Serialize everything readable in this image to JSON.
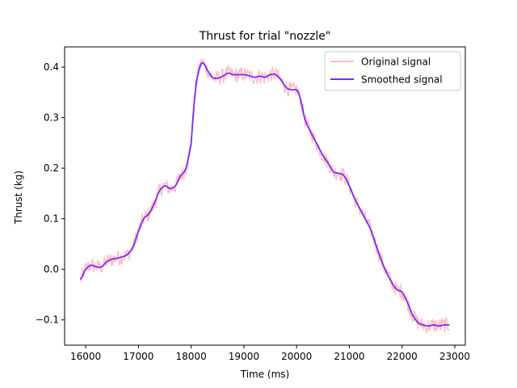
{
  "chart_data": {
    "type": "line",
    "title": "Thrust for trial \"nozzle\"",
    "xlabel": "Time (ms)",
    "ylabel": "Thrust (kg)",
    "xlim": [
      15600,
      23200
    ],
    "ylim": [
      -0.15,
      0.44
    ],
    "xticks": [
      16000,
      17000,
      18000,
      19000,
      20000,
      21000,
      22000,
      23000
    ],
    "yticks": [
      -0.1,
      0.0,
      0.1,
      0.2,
      0.3,
      0.4
    ],
    "xtick_labels": [
      "16000",
      "17000",
      "18000",
      "19000",
      "20000",
      "21000",
      "22000",
      "23000"
    ],
    "ytick_labels": [
      "−0.1",
      "0.0",
      "0.1",
      "0.2",
      "0.3",
      "0.4"
    ],
    "legend": {
      "position": "top-right",
      "entries": [
        "Original signal",
        "Smoothed signal"
      ]
    },
    "grid": false,
    "series": [
      {
        "name": "Original signal",
        "color": "#ffc0c8",
        "noise": 0.015,
        "x": [
          15900,
          16000,
          16100,
          16200,
          16300,
          16400,
          16500,
          16600,
          16700,
          16800,
          16900,
          17000,
          17100,
          17200,
          17300,
          17400,
          17500,
          17600,
          17700,
          17800,
          17900,
          18000,
          18050,
          18100,
          18150,
          18200,
          18250,
          18300,
          18400,
          18500,
          18600,
          18700,
          18800,
          18900,
          19000,
          19100,
          19200,
          19300,
          19400,
          19500,
          19600,
          19700,
          19800,
          19900,
          20000,
          20050,
          20100,
          20150,
          20200,
          20300,
          20400,
          20500,
          20600,
          20700,
          20800,
          20900,
          21000,
          21100,
          21200,
          21300,
          21400,
          21500,
          21600,
          21700,
          21800,
          21900,
          22000,
          22100,
          22200,
          22300,
          22400,
          22500,
          22600,
          22700,
          22800,
          22900
        ],
        "y": [
          -0.02,
          0.0,
          0.008,
          0.005,
          0.005,
          0.015,
          0.02,
          0.022,
          0.025,
          0.03,
          0.045,
          0.075,
          0.1,
          0.11,
          0.13,
          0.155,
          0.165,
          0.16,
          0.165,
          0.185,
          0.2,
          0.25,
          0.32,
          0.37,
          0.395,
          0.408,
          0.405,
          0.395,
          0.38,
          0.378,
          0.382,
          0.388,
          0.385,
          0.385,
          0.385,
          0.383,
          0.38,
          0.382,
          0.38,
          0.385,
          0.385,
          0.375,
          0.36,
          0.355,
          0.355,
          0.345,
          0.325,
          0.3,
          0.285,
          0.265,
          0.245,
          0.225,
          0.21,
          0.193,
          0.19,
          0.185,
          0.165,
          0.14,
          0.12,
          0.1,
          0.08,
          0.05,
          0.02,
          -0.005,
          -0.025,
          -0.04,
          -0.045,
          -0.065,
          -0.09,
          -0.105,
          -0.11,
          -0.112,
          -0.11,
          -0.112,
          -0.11,
          -0.11
        ]
      },
      {
        "name": "Smoothed signal",
        "color": "#7b2cf0",
        "x": [
          15900,
          16000,
          16100,
          16200,
          16300,
          16400,
          16500,
          16600,
          16700,
          16800,
          16900,
          17000,
          17100,
          17200,
          17300,
          17400,
          17500,
          17600,
          17700,
          17800,
          17900,
          18000,
          18050,
          18100,
          18150,
          18200,
          18250,
          18300,
          18400,
          18500,
          18600,
          18700,
          18800,
          18900,
          19000,
          19100,
          19200,
          19300,
          19400,
          19500,
          19600,
          19700,
          19800,
          19900,
          20000,
          20050,
          20100,
          20150,
          20200,
          20300,
          20400,
          20500,
          20600,
          20700,
          20800,
          20900,
          21000,
          21100,
          21200,
          21300,
          21400,
          21500,
          21600,
          21700,
          21800,
          21900,
          22000,
          22100,
          22200,
          22300,
          22400,
          22500,
          22600,
          22700,
          22800,
          22900
        ],
        "y": [
          -0.02,
          0.0,
          0.008,
          0.005,
          0.005,
          0.015,
          0.02,
          0.022,
          0.025,
          0.03,
          0.045,
          0.075,
          0.1,
          0.11,
          0.13,
          0.155,
          0.165,
          0.16,
          0.165,
          0.185,
          0.2,
          0.25,
          0.32,
          0.37,
          0.395,
          0.408,
          0.405,
          0.395,
          0.38,
          0.378,
          0.382,
          0.388,
          0.385,
          0.385,
          0.385,
          0.383,
          0.38,
          0.382,
          0.38,
          0.385,
          0.385,
          0.375,
          0.36,
          0.355,
          0.355,
          0.345,
          0.325,
          0.3,
          0.285,
          0.265,
          0.245,
          0.225,
          0.21,
          0.193,
          0.19,
          0.185,
          0.165,
          0.14,
          0.12,
          0.1,
          0.08,
          0.05,
          0.02,
          -0.005,
          -0.025,
          -0.04,
          -0.045,
          -0.065,
          -0.09,
          -0.105,
          -0.11,
          -0.112,
          -0.11,
          -0.112,
          -0.11,
          -0.11
        ]
      }
    ]
  }
}
